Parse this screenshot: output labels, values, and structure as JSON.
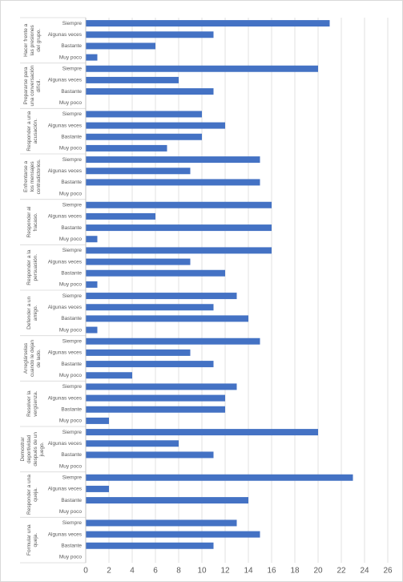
{
  "chart_data": {
    "type": "bar",
    "orientation": "horizontal",
    "color": "#4472c4",
    "categories": [
      "Siempre",
      "Algunas veces",
      "Bastante",
      "Muy poco"
    ],
    "groups": [
      {
        "name": "Hacer frente a las presiones del grupo.",
        "values": [
          21,
          11,
          6,
          1
        ]
      },
      {
        "name": "Prepararse para una conversación difícil.",
        "values": [
          20,
          8,
          11,
          0
        ]
      },
      {
        "name": "Responder a una acusación.",
        "values": [
          10,
          12,
          10,
          7
        ]
      },
      {
        "name": "Enfrentarse a los mensajes contradictorios.",
        "values": [
          15,
          9,
          15,
          0
        ]
      },
      {
        "name": "Responder al fracaso.",
        "values": [
          16,
          6,
          16,
          1
        ]
      },
      {
        "name": "Responder a la persuasión.",
        "values": [
          16,
          9,
          12,
          1
        ]
      },
      {
        "name": "Defender a un amigo.",
        "values": [
          13,
          11,
          14,
          1
        ]
      },
      {
        "name": "Arreglárselas cuando le dejan de lado.",
        "values": [
          15,
          9,
          11,
          4
        ]
      },
      {
        "name": "Resolver la vergüenza.",
        "values": [
          13,
          12,
          12,
          2
        ]
      },
      {
        "name": "Demostrar deportividad después de un juego.",
        "values": [
          20,
          8,
          11,
          0
        ]
      },
      {
        "name": "Responder a una queja.",
        "values": [
          23,
          2,
          14,
          0
        ]
      },
      {
        "name": "Formular una queja.",
        "values": [
          13,
          15,
          11,
          0
        ]
      }
    ],
    "xlim": [
      0,
      26
    ],
    "xticks": [
      0,
      2,
      4,
      6,
      8,
      10,
      12,
      14,
      16,
      18,
      20,
      22,
      24,
      26
    ],
    "grid": true
  }
}
